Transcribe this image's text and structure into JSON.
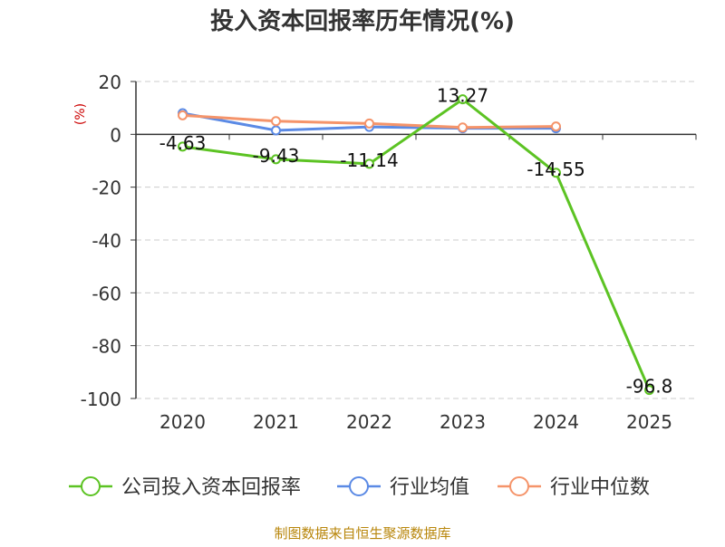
{
  "chart_data": {
    "type": "line",
    "title": "投入资本回报率历年情况(%)",
    "ylabel": "(%)",
    "xlabel": "",
    "categories": [
      "2020",
      "2021",
      "2022",
      "2023",
      "2024",
      "2025"
    ],
    "ylim": [
      -100,
      20
    ],
    "yticks": [
      20,
      0,
      -20,
      -40,
      -60,
      -80,
      -100
    ],
    "grid": true,
    "legend_position": "bottom",
    "series": [
      {
        "name": "公司投入资本回报率",
        "color": "#5cc323",
        "values": [
          -4.63,
          -9.43,
          -11.14,
          13.27,
          -14.55,
          -96.8
        ],
        "labels": [
          "-4.63",
          "-9.43",
          "-11.14",
          "13.27",
          "-14.55",
          "-96.8"
        ]
      },
      {
        "name": "行业均值",
        "color": "#5b8ae5",
        "values": [
          8.0,
          1.5,
          2.8,
          2.3,
          2.3,
          null
        ]
      },
      {
        "name": "行业中位数",
        "color": "#f5946a",
        "values": [
          7.2,
          5.0,
          4.1,
          2.6,
          3.0,
          null
        ]
      }
    ]
  },
  "footer": {
    "source": "制图数据来自恒生聚源数据库"
  }
}
